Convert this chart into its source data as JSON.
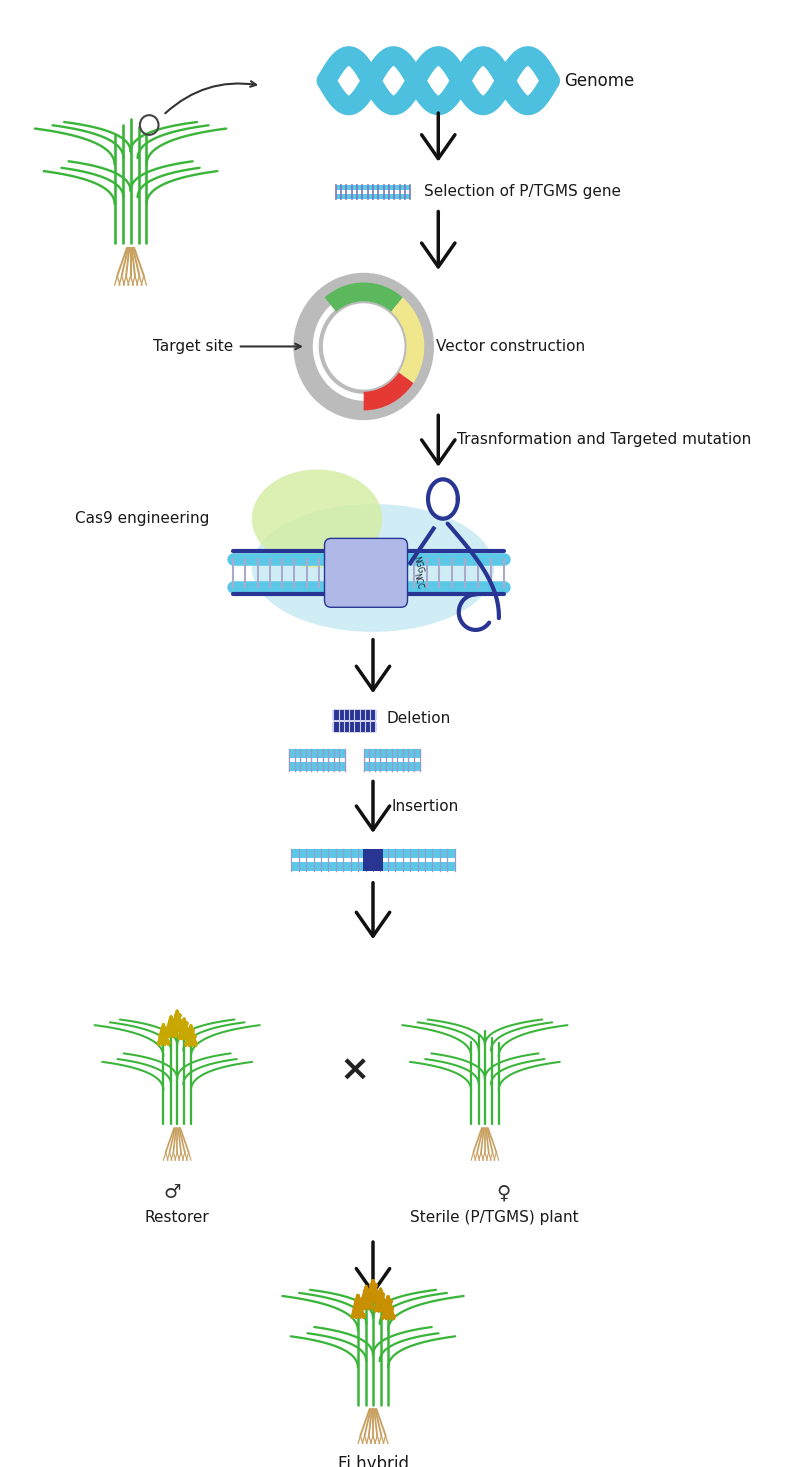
{
  "background_color": "#ffffff",
  "text_color": "#1a1a1a",
  "label_genome": "Genome",
  "label_selection": "Selection of P/TGMS gene",
  "label_target_site": "Target site",
  "label_vector": "Vector construction",
  "label_transformation": "Trasnformation and Targeted mutation",
  "label_cas9": "Cas9 engineering",
  "label_deletion": "Deletion",
  "label_insertion": "Insertion",
  "label_restorer": "Restorer",
  "label_sterile": "Sterile (P/TGMS) plant",
  "label_hybrid": "Fi hybrid",
  "dna_color": "#4dbfdf",
  "dna_rung_color": "#e87878",
  "gene_bar_color": "#5bc8e8",
  "plasmid_outer_color": "#cccccc",
  "plasmid_green": "#5cb85c",
  "plasmid_yellow": "#f0e68c",
  "plasmid_red": "#e53935",
  "cas9_bg_light_blue": "#c8eaf5",
  "cas9_bg_green": "#d4eda0",
  "cas9_dna_color": "#5bc8e8",
  "cas9_protein_color": "#b0b8e8",
  "cas9_guide_color": "#283593",
  "cas9_dark_bar": "#283593",
  "deletion_bar_color": "#283593",
  "split_bar_color": "#5bc8e8",
  "insertion_bar_color": "#5bc8e8",
  "insertion_block_color": "#283593",
  "arrow_color": "#111111",
  "stem_green": "#3ab53a",
  "leaf_green": "#4cbb4c",
  "root_color": "#c8a060",
  "grain_color": "#d4a800",
  "grain_color_hybrid": "#c89000",
  "male_symbol": "♂",
  "female_symbol": "♀",
  "cross_symbol": "×",
  "font_size_labels": 11,
  "font_size_small": 5
}
